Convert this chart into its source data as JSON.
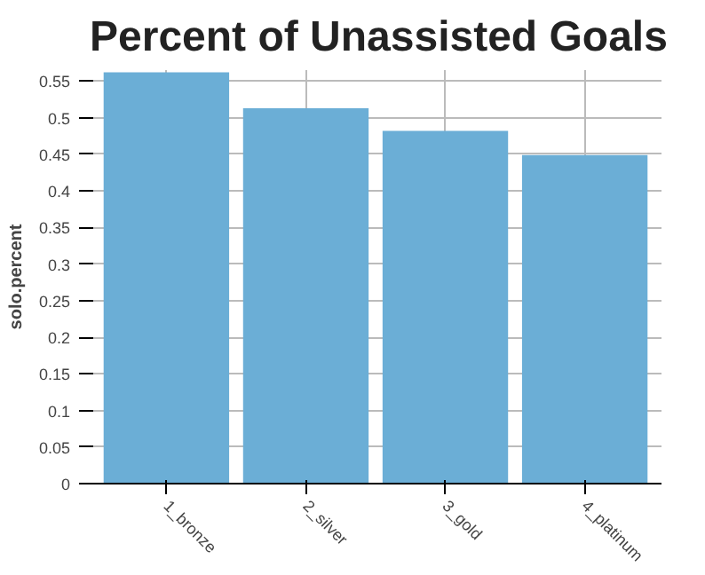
{
  "chart_data": {
    "type": "bar",
    "title": "Percent of Unassisted Goals",
    "ylabel": "solo.percent",
    "categories": [
      "1_bronze",
      "2_silver",
      "3_gold",
      "4_platinum"
    ],
    "values": [
      0.562,
      0.513,
      0.482,
      0.449
    ],
    "color": "#6baed6",
    "ylim": [
      0,
      0.565
    ],
    "yticks": [
      0,
      0.05,
      0.1,
      0.15,
      0.2,
      0.25,
      0.3,
      0.35,
      0.4,
      0.45,
      0.5,
      0.55
    ],
    "grid": true
  }
}
